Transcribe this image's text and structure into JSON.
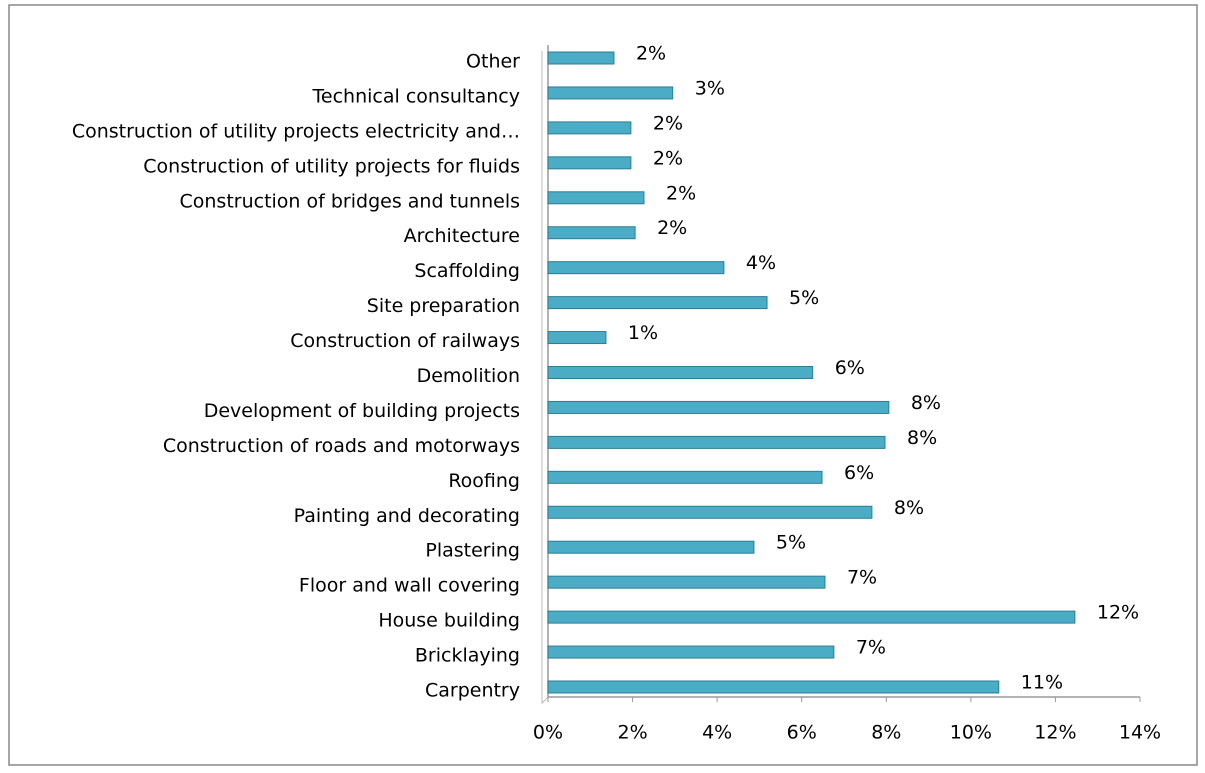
{
  "chart_data": {
    "type": "bar",
    "orientation": "horizontal",
    "color": "#4bacc6",
    "categories": [
      "Other",
      "Technical consultancy",
      "Construction of utility projects electricity and…",
      "Construction of utility projects for fluids",
      "Construction of bridges and tunnels",
      "Architecture",
      "Scaffolding",
      "Site preparation",
      "Construction of railways",
      "Demolition",
      "Development of building projects",
      "Construction of roads and motorways",
      "Roofing",
      "Painting and decorating",
      "Plastering",
      "Floor and wall covering",
      "House building",
      "Bricklaying",
      "Carpentry"
    ],
    "values": [
      1.56,
      2.95,
      1.96,
      1.96,
      2.27,
      2.06,
      4.16,
      5.18,
      1.37,
      6.26,
      8.06,
      7.97,
      6.48,
      7.66,
      4.87,
      6.55,
      12.46,
      6.76,
      10.66
    ],
    "value_labels": [
      "2%",
      "3%",
      "2%",
      "2%",
      "2%",
      "2%",
      "4%",
      "5%",
      "1%",
      "6%",
      "8%",
      "8%",
      "6%",
      "8%",
      "5%",
      "7%",
      "12%",
      "7%",
      "11%"
    ],
    "xlim": [
      0,
      14
    ],
    "xticks": [
      {
        "value": 0,
        "label": "0%"
      },
      {
        "value": 2,
        "label": "2%"
      },
      {
        "value": 4,
        "label": "4%"
      },
      {
        "value": 6,
        "label": "6%"
      },
      {
        "value": 8,
        "label": "8%"
      },
      {
        "value": 10,
        "label": "10%"
      },
      {
        "value": 12,
        "label": "12%"
      },
      {
        "value": 14,
        "label": "14%"
      }
    ]
  }
}
